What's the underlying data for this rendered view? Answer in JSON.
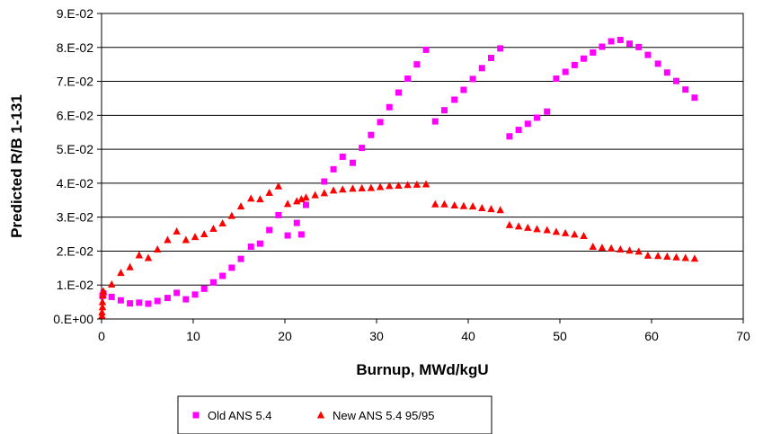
{
  "chart_data": {
    "type": "scatter",
    "xlabel": "Burnup, MWd/kgU",
    "ylabel": "Predicted R/B 1-131",
    "xlim": [
      0,
      70
    ],
    "ylim": [
      0,
      0.09
    ],
    "x_ticks": [
      0,
      10,
      20,
      30,
      40,
      50,
      60,
      70
    ],
    "x_tick_labels": [
      "0",
      "10",
      "20",
      "30",
      "40",
      "50",
      "60",
      "70"
    ],
    "y_ticks": [
      0,
      0.01,
      0.02,
      0.03,
      0.04,
      0.05,
      0.06,
      0.07,
      0.08,
      0.09
    ],
    "y_tick_labels": [
      "0.E+00",
      "1.E-02",
      "2.E-02",
      "3.E-02",
      "4.E-02",
      "5.E-02",
      "6.E-02",
      "7.E-02",
      "8.E-02",
      "9.E-02"
    ],
    "grid": "horizontal",
    "legend": "bottom",
    "series": [
      {
        "name": "Old ANS 5.4",
        "color": "#ff00ff",
        "marker": "square",
        "x": [
          0.1,
          0.2,
          1.1,
          2.1,
          3.1,
          4.1,
          5.1,
          6.1,
          7.2,
          8.2,
          9.2,
          10.2,
          11.2,
          12.2,
          13.2,
          14.2,
          15.2,
          16.3,
          17.3,
          18.3,
          19.3,
          20.3,
          21.3,
          21.8,
          22.3,
          24.3,
          25.3,
          26.3,
          27.4,
          28.4,
          29.4,
          30.4,
          31.4,
          32.4,
          33.4,
          34.4,
          35.4,
          36.4,
          37.4,
          38.5,
          39.5,
          40.5,
          41.5,
          42.5,
          43.5,
          44.5,
          45.5,
          46.5,
          47.5,
          48.6,
          49.6,
          50.6,
          51.6,
          52.6,
          53.6,
          54.6,
          55.6,
          56.6,
          57.6,
          58.6,
          59.6,
          60.7,
          61.7,
          62.7,
          63.7,
          64.7
        ],
        "y": [
          0.0068,
          0.0075,
          0.0065,
          0.0055,
          0.0046,
          0.0048,
          0.0045,
          0.0053,
          0.0062,
          0.0077,
          0.0058,
          0.0072,
          0.0089,
          0.0108,
          0.0127,
          0.0151,
          0.0177,
          0.0213,
          0.0222,
          0.0262,
          0.0306,
          0.0246,
          0.0283,
          0.0249,
          0.0336,
          0.0405,
          0.0441,
          0.0478,
          0.046,
          0.0504,
          0.0542,
          0.058,
          0.0624,
          0.0667,
          0.0708,
          0.075,
          0.0793,
          0.0582,
          0.0615,
          0.0646,
          0.0675,
          0.0707,
          0.0739,
          0.0769,
          0.0797,
          0.0538,
          0.0557,
          0.0575,
          0.0593,
          0.0611,
          0.0708,
          0.0728,
          0.0748,
          0.0767,
          0.0785,
          0.0802,
          0.0818,
          0.0822,
          0.0811,
          0.0801,
          0.0778,
          0.0752,
          0.0726,
          0.0701,
          0.0676,
          0.0652
        ]
      },
      {
        "name": "New ANS 5.4 95/95",
        "color": "#ff0000",
        "marker": "triangle",
        "x": [
          0.05,
          0.05,
          0.1,
          0.1,
          0.15,
          0.2,
          1.1,
          2.1,
          3.1,
          4.1,
          5.1,
          6.1,
          7.2,
          8.2,
          9.2,
          10.2,
          11.2,
          12.2,
          13.2,
          14.2,
          15.2,
          16.3,
          17.3,
          18.3,
          19.3,
          20.3,
          21.3,
          21.8,
          22.3,
          23.3,
          24.3,
          25.3,
          26.3,
          27.4,
          28.4,
          29.4,
          30.4,
          31.4,
          32.4,
          33.4,
          34.4,
          35.4,
          36.4,
          37.4,
          38.5,
          39.5,
          40.5,
          41.5,
          42.5,
          43.5,
          44.5,
          45.5,
          46.5,
          47.5,
          48.6,
          49.6,
          50.6,
          51.6,
          52.6,
          53.6,
          54.6,
          55.6,
          56.6,
          57.6,
          58.6,
          59.6,
          60.7,
          61.7,
          62.7,
          63.7,
          64.7
        ],
        "y": [
          0.001,
          0.002,
          0.0035,
          0.005,
          0.007,
          0.0082,
          0.0102,
          0.0136,
          0.0153,
          0.0188,
          0.018,
          0.0205,
          0.0233,
          0.0258,
          0.0233,
          0.0242,
          0.025,
          0.0266,
          0.0282,
          0.0304,
          0.0332,
          0.0355,
          0.0353,
          0.0372,
          0.0391,
          0.0339,
          0.0347,
          0.0353,
          0.0358,
          0.0365,
          0.0371,
          0.0379,
          0.0382,
          0.0384,
          0.0385,
          0.0386,
          0.0389,
          0.0392,
          0.0393,
          0.0395,
          0.0396,
          0.0397,
          0.0338,
          0.0338,
          0.0335,
          0.0333,
          0.0332,
          0.0327,
          0.0324,
          0.0321,
          0.0277,
          0.0273,
          0.0269,
          0.0265,
          0.0262,
          0.0257,
          0.0253,
          0.0249,
          0.0245,
          0.0213,
          0.021,
          0.0208,
          0.0205,
          0.0202,
          0.0199,
          0.0187,
          0.0186,
          0.0184,
          0.0182,
          0.018,
          0.0178
        ]
      }
    ]
  }
}
